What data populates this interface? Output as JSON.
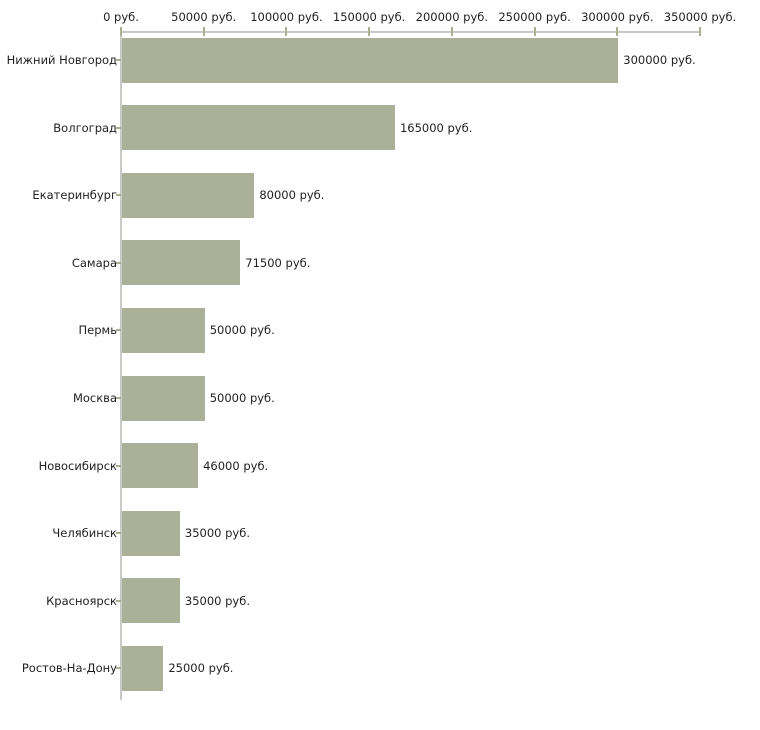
{
  "chart_data": {
    "type": "bar",
    "orientation": "horizontal",
    "title": "",
    "xlabel": "",
    "ylabel": "",
    "grid": false,
    "legend": false,
    "xlim": [
      0,
      350000
    ],
    "x_tick_labels": [
      "0 руб.",
      "50000 руб.",
      "100000 руб.",
      "150000 руб.",
      "200000 руб.",
      "250000 руб.",
      "300000 руб.",
      "350000 руб."
    ],
    "categories": [
      "Нижний Новгород",
      "Волгоград",
      "Екатеринбург",
      "Самара",
      "Пермь",
      "Москва",
      "Новосибирск",
      "Челябинск",
      "Красноярск",
      "Ростов-На-Дону"
    ],
    "values": [
      300000,
      165000,
      80000,
      71500,
      50000,
      50000,
      46000,
      35000,
      35000,
      25000
    ],
    "value_labels": [
      "300000 руб.",
      "165000 руб.",
      "80000 руб.",
      "71500 руб.",
      "50000 руб.",
      "50000 руб.",
      "46000 руб.",
      "35000 руб.",
      "35000 руб.",
      "25000 руб."
    ],
    "colors": {
      "bar": "#abb199",
      "axis_line": "#c9c9c6",
      "tick": "#adae92",
      "text": "#1f1f1f",
      "background": "#ffffff"
    }
  }
}
